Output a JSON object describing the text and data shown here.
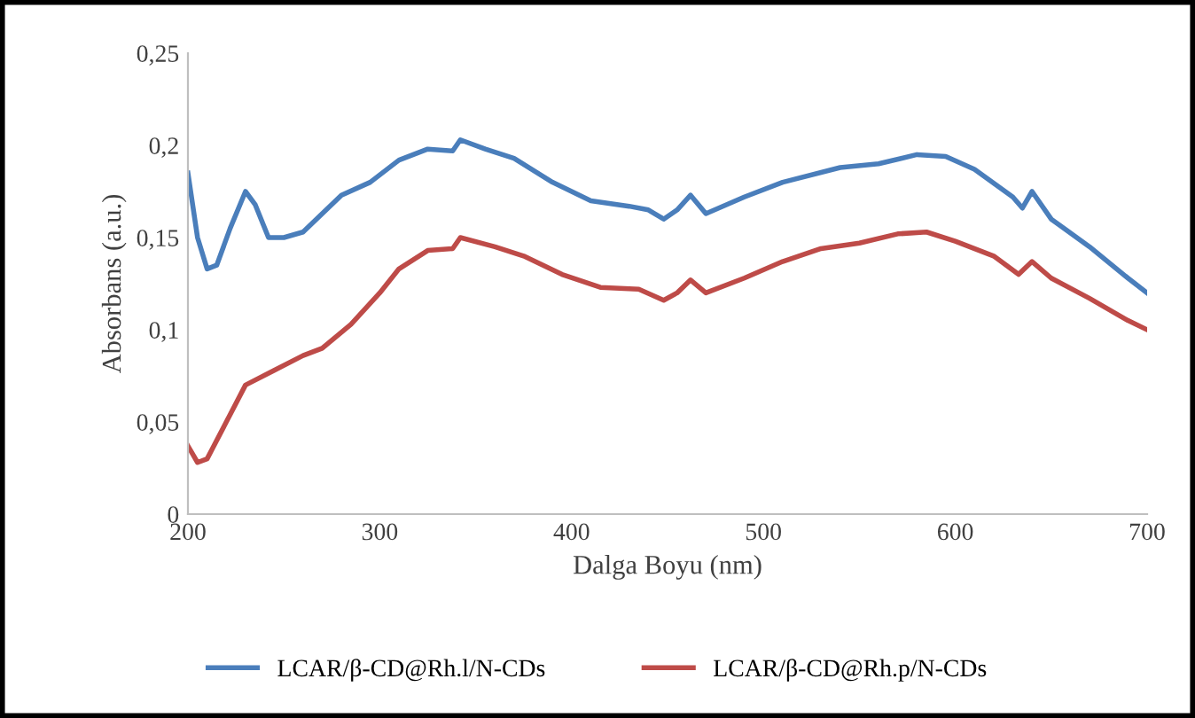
{
  "chart_data": {
    "type": "line",
    "xlabel": "Dalga Boyu (nm)",
    "ylabel": "Absorbans (a.u.)",
    "xlim": [
      200,
      700
    ],
    "xticks": [
      200,
      300,
      400,
      500,
      600,
      700
    ],
    "ylim": [
      0,
      0.25
    ],
    "yticks": [
      {
        "value": 0,
        "label": "0"
      },
      {
        "value": 0.05,
        "label": "0,05"
      },
      {
        "value": 0.1,
        "label": "0,1"
      },
      {
        "value": 0.15,
        "label": "0,15"
      },
      {
        "value": 0.2,
        "label": "0,2"
      },
      {
        "value": 0.25,
        "label": "0,25"
      }
    ],
    "grid": false,
    "legend": "bottom",
    "marker": "none",
    "line_style": "solid",
    "series": [
      {
        "name": "LCAR/β-CD@Rh.l/N-CDs",
        "color": "#4a7ebb",
        "x": [
          200,
          205,
          210,
          215,
          222,
          230,
          235,
          242,
          250,
          260,
          270,
          280,
          295,
          310,
          325,
          338,
          342,
          355,
          370,
          390,
          410,
          430,
          440,
          448,
          455,
          462,
          470,
          490,
          510,
          540,
          560,
          580,
          595,
          610,
          630,
          635,
          640,
          650,
          670,
          690,
          700
        ],
        "values": [
          0.185,
          0.15,
          0.133,
          0.135,
          0.155,
          0.175,
          0.168,
          0.15,
          0.15,
          0.153,
          0.163,
          0.173,
          0.18,
          0.192,
          0.198,
          0.197,
          0.203,
          0.198,
          0.193,
          0.18,
          0.17,
          0.167,
          0.165,
          0.16,
          0.165,
          0.173,
          0.163,
          0.172,
          0.18,
          0.188,
          0.19,
          0.195,
          0.194,
          0.187,
          0.172,
          0.166,
          0.175,
          0.16,
          0.145,
          0.128,
          0.12
        ]
      },
      {
        "name": "LCAR/β-CD@Rh.p/N-CDs",
        "color": "#be4b48",
        "x": [
          200,
          205,
          210,
          220,
          230,
          245,
          260,
          270,
          285,
          300,
          310,
          325,
          338,
          342,
          360,
          375,
          395,
          415,
          435,
          448,
          455,
          462,
          470,
          490,
          510,
          530,
          550,
          570,
          585,
          600,
          620,
          633,
          640,
          650,
          670,
          690,
          700
        ],
        "values": [
          0.037,
          0.028,
          0.03,
          0.05,
          0.07,
          0.078,
          0.086,
          0.09,
          0.103,
          0.12,
          0.133,
          0.143,
          0.144,
          0.15,
          0.145,
          0.14,
          0.13,
          0.123,
          0.122,
          0.116,
          0.12,
          0.127,
          0.12,
          0.128,
          0.137,
          0.144,
          0.147,
          0.152,
          0.153,
          0.148,
          0.14,
          0.13,
          0.137,
          0.128,
          0.117,
          0.105,
          0.1
        ]
      }
    ]
  }
}
